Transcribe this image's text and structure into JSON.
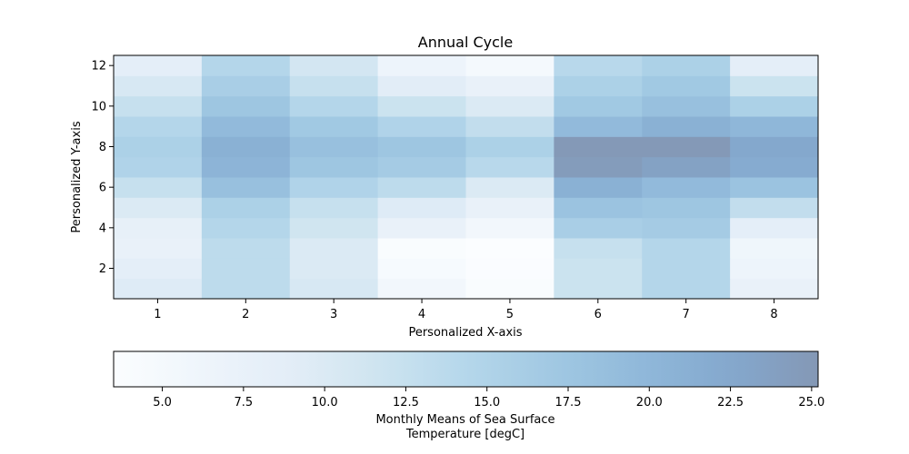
{
  "chart_data": {
    "type": "heatmap",
    "title": "Annual Cycle",
    "xlabel": "Personalized X-axis",
    "ylabel": "Personalized Y-axis",
    "x_categories": [
      1,
      2,
      3,
      4,
      5,
      6,
      7,
      8
    ],
    "y_categories": [
      1,
      2,
      3,
      4,
      5,
      6,
      7,
      8,
      9,
      10,
      11,
      12
    ],
    "x_ticks": [
      "1",
      "2",
      "3",
      "4",
      "5",
      "6",
      "7",
      "8"
    ],
    "y_ticks": [
      "2",
      "4",
      "6",
      "8",
      "10",
      "12"
    ],
    "values": [
      [
        9.5,
        13.5,
        10.5,
        5.5,
        4.0,
        12.0,
        14.5,
        7.5
      ],
      [
        8.5,
        13.5,
        10.0,
        4.5,
        3.8,
        12.0,
        14.5,
        6.5
      ],
      [
        7.5,
        13.5,
        10.0,
        4.0,
        3.5,
        12.5,
        14.5,
        6.0
      ],
      [
        8.0,
        14.5,
        11.5,
        7.5,
        5.5,
        16.0,
        16.5,
        8.5
      ],
      [
        10.0,
        15.5,
        12.5,
        9.5,
        7.5,
        18.0,
        17.5,
        13.0
      ],
      [
        12.5,
        18.5,
        15.0,
        13.5,
        10.0,
        21.0,
        19.5,
        18.0
      ],
      [
        15.0,
        20.5,
        17.5,
        16.5,
        14.0,
        24.5,
        23.5,
        22.0
      ],
      [
        15.5,
        21.0,
        18.5,
        17.5,
        15.5,
        25.0,
        25.0,
        22.5
      ],
      [
        14.5,
        19.5,
        17.0,
        15.0,
        13.0,
        19.5,
        21.0,
        20.0
      ],
      [
        12.5,
        17.5,
        14.5,
        12.0,
        10.0,
        17.0,
        18.5,
        15.5
      ],
      [
        10.5,
        16.0,
        12.5,
        9.0,
        7.5,
        15.5,
        17.0,
        12.0
      ],
      [
        8.5,
        14.5,
        11.0,
        6.5,
        5.0,
        14.0,
        15.5,
        8.5
      ]
    ],
    "vmin": 3.5,
    "vmax": 25.2,
    "colorbar": {
      "label_line1": "Monthly Means of Sea Surface",
      "label_line2": "Temperature [degC]",
      "ticks": [
        5.0,
        7.5,
        10.0,
        12.5,
        15.0,
        17.5,
        20.0,
        22.5,
        25.0
      ],
      "tick_labels": [
        "5.0",
        "7.5",
        "10.0",
        "12.5",
        "15.0",
        "17.5",
        "20.0",
        "22.5",
        "25.0"
      ]
    },
    "colormap": [
      "#f7fbff",
      "#deebf7",
      "#c6dbef",
      "#9ecae1",
      "#6baed6",
      "#4292c6",
      "#2171b5",
      "#08519c",
      "#08306b"
    ],
    "alpha": 0.5,
    "grid": false
  }
}
